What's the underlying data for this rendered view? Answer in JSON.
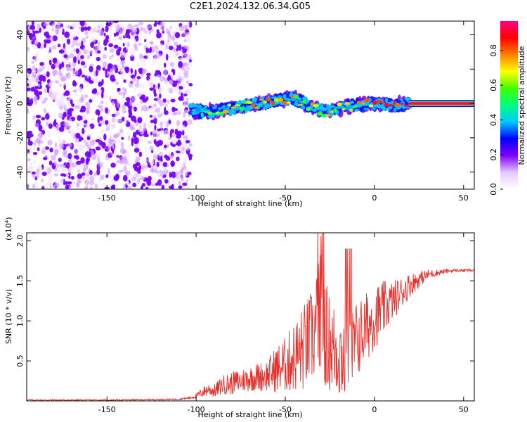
{
  "title": "C2E1.2024.132.06.34.G05",
  "chart_data": [
    {
      "type": "heatmap",
      "name": "spectrogram",
      "xlabel": "Height of straight line (km)",
      "ylabel": "Frequency (Hz)",
      "xlim": [
        -195,
        56
      ],
      "ylim": [
        -50,
        48
      ],
      "xticks": [
        -150,
        -100,
        -50,
        0,
        50
      ],
      "yticks": [
        -40,
        -20,
        0,
        20,
        40
      ],
      "colorbar": {
        "label": "Normalized spectral amplitude",
        "range": [
          0,
          0.97
        ],
        "ticks": [
          0.0,
          0.2,
          0.4,
          0.6,
          0.8
        ],
        "tick_labels": [
          "0.0",
          "0.2",
          "0.4",
          "0.6",
          "0.8"
        ],
        "colors": [
          "#ffffff",
          "#e6c9ff",
          "#8000ff",
          "#0000ff",
          "#00c8ff",
          "#00ff80",
          "#40ff00",
          "#ffff00",
          "#ff8000",
          "#ff0000",
          "#ff0080"
        ]
      },
      "noise_region": {
        "x": [
          -195,
          -103
        ],
        "y": [
          -50,
          48
        ],
        "amplitude": [
          0.0,
          0.2
        ]
      },
      "signal_track": [
        {
          "x": -103,
          "y": -4,
          "amp": 0.3
        },
        {
          "x": -95,
          "y": -5,
          "amp": 0.4
        },
        {
          "x": -85,
          "y": -4,
          "amp": 0.45
        },
        {
          "x": -75,
          "y": -2,
          "amp": 0.5
        },
        {
          "x": -65,
          "y": 0,
          "amp": 0.55
        },
        {
          "x": -55,
          "y": 2,
          "amp": 0.6
        },
        {
          "x": -45,
          "y": 3,
          "amp": 0.55
        },
        {
          "x": -35,
          "y": -2,
          "amp": 0.5
        },
        {
          "x": -28,
          "y": -5,
          "amp": 0.45
        },
        {
          "x": -20,
          "y": -3,
          "amp": 0.5
        },
        {
          "x": -10,
          "y": -1,
          "amp": 0.55
        },
        {
          "x": 0,
          "y": 0,
          "amp": 0.65
        },
        {
          "x": 10,
          "y": -1,
          "amp": 0.7
        },
        {
          "x": 20,
          "y": 0,
          "amp": 0.9
        },
        {
          "x": 56,
          "y": 0,
          "amp": 0.95
        }
      ]
    },
    {
      "type": "line",
      "name": "snr",
      "xlabel": "Height of straight line (km)",
      "ylabel": "SNR (10 * v/v)",
      "y_multiplier": "(x10^4)",
      "y_multiplier_base": "(x10",
      "y_multiplier_exp": "4",
      "y_multiplier_close": ")",
      "xlim": [
        -195,
        56
      ],
      "ylim": [
        0,
        2.1
      ],
      "xticks": [
        -150,
        -100,
        -50,
        0,
        50
      ],
      "yticks": [
        0.5,
        1.0,
        1.5,
        2.0
      ],
      "ytick_labels": [
        "0.5",
        "1.0",
        "1.5",
        "2.0"
      ],
      "color": "#e8302c",
      "series": [
        {
          "name": "SNR",
          "x": [
            -195,
            -150,
            -110,
            -103,
            -100,
            -97,
            -93,
            -90,
            -85,
            -80,
            -75,
            -70,
            -65,
            -60,
            -55,
            -50,
            -45,
            -40,
            -35,
            -31,
            -30,
            -28,
            -25,
            -20,
            -16,
            -15,
            -13,
            -10,
            -5,
            0,
            5,
            10,
            15,
            20,
            25,
            30,
            35,
            40,
            45,
            50,
            56
          ],
          "y": [
            0.01,
            0.01,
            0.02,
            0.04,
            0.06,
            0.1,
            0.15,
            0.12,
            0.2,
            0.22,
            0.25,
            0.28,
            0.3,
            0.32,
            0.4,
            0.45,
            0.55,
            0.65,
            0.8,
            1.0,
            1.3,
            0.9,
            0.7,
            0.6,
            0.55,
            0.5,
            0.6,
            0.75,
            0.9,
            1.05,
            1.15,
            1.25,
            1.35,
            1.45,
            1.52,
            1.58,
            1.6,
            1.62,
            1.63,
            1.63,
            1.63
          ],
          "spread": [
            0.01,
            0.01,
            0.01,
            0.02,
            0.03,
            0.06,
            0.08,
            0.08,
            0.12,
            0.14,
            0.15,
            0.16,
            0.18,
            0.2,
            0.3,
            0.35,
            0.45,
            0.55,
            0.6,
            0.8,
            0.8,
            0.7,
            0.6,
            0.6,
            0.6,
            0.6,
            0.55,
            0.5,
            0.45,
            0.4,
            0.35,
            0.25,
            0.2,
            0.15,
            0.1,
            0.06,
            0.04,
            0.03,
            0.02,
            0.02,
            0.02
          ]
        }
      ]
    }
  ]
}
